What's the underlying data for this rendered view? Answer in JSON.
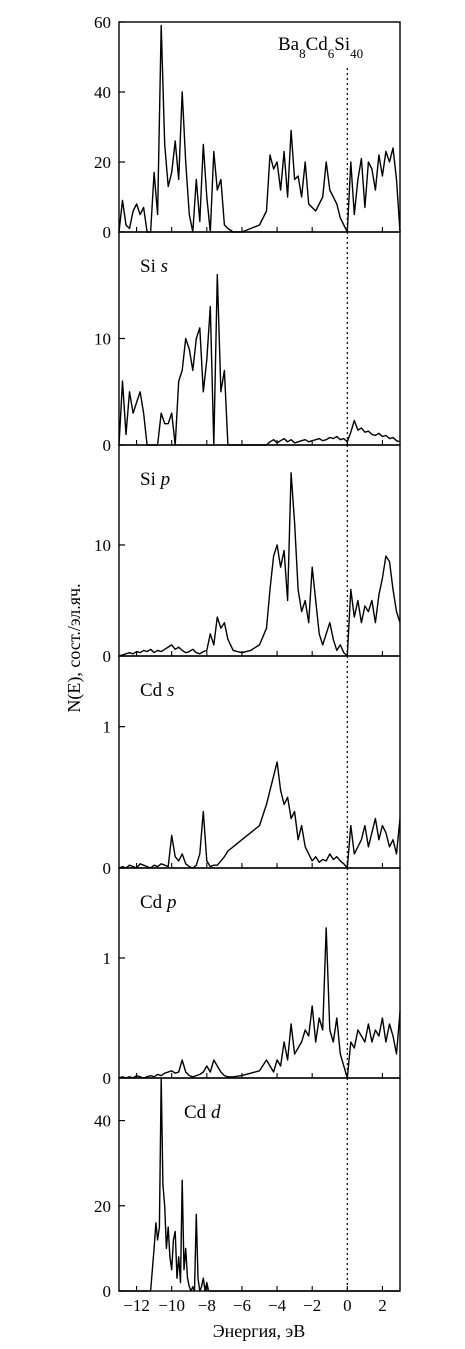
{
  "chart_data": {
    "type": "line",
    "xlabel": "Энергия, эВ",
    "ylabel": "N(E), сост./эл.яч.",
    "xlim": [
      -13,
      3
    ],
    "x_ticks": [
      -12,
      -10,
      -8,
      -6,
      -4,
      -2,
      0,
      2
    ],
    "x_tick_labels": [
      "−12",
      "−10",
      "−8",
      "−6",
      "−4",
      "−2",
      "0",
      "2"
    ],
    "fermi_level": 0,
    "fermi_line_style": "dotted",
    "line_color": "#000000",
    "panels": [
      {
        "label_main": "Ba",
        "label_parts": [
          {
            "t": "Ba",
            "sub": false
          },
          {
            "t": "8",
            "sub": true
          },
          {
            "t": "Cd",
            "sub": false
          },
          {
            "t": "6",
            "sub": true
          },
          {
            "t": "Si",
            "sub": false
          },
          {
            "t": "40",
            "sub": true
          }
        ],
        "label_plain": "Ba8Cd6Si40",
        "ylim": [
          0,
          60
        ],
        "yticks": [
          0,
          20,
          40,
          60
        ],
        "ytick_labels": [
          "0",
          "20",
          "40",
          "60"
        ],
        "x": [
          -13,
          -12.8,
          -12.6,
          -12.4,
          -12.2,
          -12.0,
          -11.8,
          -11.6,
          -11.4,
          -11.2,
          -11.0,
          -10.8,
          -10.6,
          -10.4,
          -10.2,
          -10.0,
          -9.8,
          -9.6,
          -9.4,
          -9.2,
          -9.0,
          -8.8,
          -8.6,
          -8.4,
          -8.2,
          -8.0,
          -7.8,
          -7.6,
          -7.4,
          -7.2,
          -7.0,
          -6.8,
          -6.5,
          -6.0,
          -5.5,
          -5.0,
          -4.6,
          -4.4,
          -4.2,
          -4.0,
          -3.8,
          -3.6,
          -3.4,
          -3.2,
          -3.0,
          -2.8,
          -2.6,
          -2.4,
          -2.2,
          -2.0,
          -1.8,
          -1.6,
          -1.4,
          -1.2,
          -1.0,
          -0.8,
          -0.6,
          -0.4,
          -0.2,
          0.0,
          0.2,
          0.4,
          0.6,
          0.8,
          1.0,
          1.2,
          1.4,
          1.6,
          1.8,
          2.0,
          2.2,
          2.4,
          2.6,
          2.8,
          3.0
        ],
        "y": [
          0,
          9,
          2,
          1,
          6,
          8,
          5,
          7,
          0,
          0,
          17,
          5,
          59,
          25,
          13,
          17,
          26,
          15,
          40,
          20,
          5,
          0,
          15,
          3,
          25,
          10,
          0,
          23,
          12,
          15,
          2,
          1,
          0,
          0,
          1,
          2,
          6,
          22,
          18,
          20,
          12,
          23,
          10,
          29,
          15,
          16,
          10,
          20,
          8,
          7,
          6,
          8,
          10,
          20,
          12,
          10,
          8,
          4,
          2,
          0,
          20,
          5,
          15,
          21,
          7,
          20,
          18,
          12,
          22,
          16,
          23,
          20,
          24,
          15,
          0
        ]
      },
      {
        "label_parts": [
          {
            "t": "Si ",
            "sub": false
          },
          {
            "t": "s",
            "sub": false,
            "italic": true
          }
        ],
        "label_plain": "Si s",
        "ylim": [
          0,
          20
        ],
        "yticks": [
          0,
          10
        ],
        "ytick_labels": [
          "0",
          "10"
        ],
        "x": [
          -13,
          -12.8,
          -12.6,
          -12.4,
          -12.2,
          -12.0,
          -11.8,
          -11.6,
          -11.4,
          -11.2,
          -11.0,
          -10.8,
          -10.6,
          -10.4,
          -10.2,
          -10.0,
          -9.8,
          -9.6,
          -9.4,
          -9.2,
          -9.0,
          -8.8,
          -8.6,
          -8.4,
          -8.2,
          -8.0,
          -7.8,
          -7.6,
          -7.4,
          -7.2,
          -7.0,
          -6.8,
          -6.5,
          -6.0,
          -5.5,
          -5.0,
          -4.6,
          -4.4,
          -4.2,
          -4.0,
          -3.8,
          -3.6,
          -3.4,
          -3.2,
          -3.0,
          -2.8,
          -2.6,
          -2.4,
          -2.2,
          -2.0,
          -1.8,
          -1.6,
          -1.4,
          -1.2,
          -1.0,
          -0.8,
          -0.6,
          -0.4,
          -0.2,
          0.0,
          0.2,
          0.4,
          0.6,
          0.8,
          1.0,
          1.2,
          1.4,
          1.6,
          1.8,
          2.0,
          2.2,
          2.4,
          2.6,
          2.8,
          3.0
        ],
        "y": [
          0,
          6,
          1,
          5,
          3,
          4,
          5,
          3,
          0,
          0,
          0,
          0,
          3,
          2,
          2,
          3,
          0,
          6,
          7,
          10,
          9,
          7,
          10,
          11,
          5,
          8,
          13,
          0,
          16,
          5,
          7,
          0,
          0,
          0,
          0,
          0,
          0,
          0.3,
          0.5,
          0.2,
          0.4,
          0.6,
          0.3,
          0.5,
          0.2,
          0.3,
          0.4,
          0.5,
          0.3,
          0.4,
          0.5,
          0.6,
          0.4,
          0.5,
          0.7,
          0.6,
          0.8,
          0.5,
          0.6,
          0.3,
          1.2,
          2.3,
          1.4,
          1.6,
          1.2,
          1.3,
          1.0,
          0.9,
          1.1,
          0.8,
          0.9,
          0.6,
          0.7,
          0.4,
          0.3
        ]
      },
      {
        "label_parts": [
          {
            "t": "Si ",
            "sub": false
          },
          {
            "t": "p",
            "sub": false,
            "italic": true
          }
        ],
        "label_plain": "Si p",
        "ylim": [
          0,
          19
        ],
        "yticks": [
          0,
          10
        ],
        "ytick_labels": [
          "0",
          "10"
        ],
        "x": [
          -13,
          -12.8,
          -12.6,
          -12.4,
          -12.2,
          -12.0,
          -11.8,
          -11.6,
          -11.4,
          -11.2,
          -11.0,
          -10.8,
          -10.6,
          -10.4,
          -10.2,
          -10.0,
          -9.8,
          -9.6,
          -9.4,
          -9.2,
          -9.0,
          -8.8,
          -8.6,
          -8.4,
          -8.2,
          -8.0,
          -7.8,
          -7.6,
          -7.4,
          -7.2,
          -7.0,
          -6.8,
          -6.5,
          -6.0,
          -5.5,
          -5.0,
          -4.6,
          -4.4,
          -4.2,
          -4.0,
          -3.8,
          -3.6,
          -3.4,
          -3.2,
          -3.0,
          -2.8,
          -2.6,
          -2.4,
          -2.2,
          -2.0,
          -1.8,
          -1.6,
          -1.4,
          -1.2,
          -1.0,
          -0.8,
          -0.6,
          -0.4,
          -0.2,
          0.0,
          0.2,
          0.4,
          0.6,
          0.8,
          1.0,
          1.2,
          1.4,
          1.6,
          1.8,
          2.0,
          2.2,
          2.4,
          2.6,
          2.8,
          3.0
        ],
        "y": [
          0,
          0.1,
          0.2,
          0.3,
          0.2,
          0.4,
          0.3,
          0.5,
          0.4,
          0.6,
          0.3,
          0.5,
          0.4,
          0.6,
          0.8,
          1.0,
          0.6,
          0.8,
          0.5,
          0.3,
          0.4,
          0.6,
          0.3,
          0.2,
          0.4,
          0.5,
          2.0,
          1.0,
          3.5,
          2.5,
          3.0,
          1.5,
          0.5,
          0.3,
          0.5,
          1.0,
          2.5,
          6.0,
          9.0,
          10.0,
          8.0,
          9.5,
          5.0,
          16.5,
          12.0,
          6.0,
          4.0,
          5.0,
          3.0,
          8.0,
          5.0,
          2.0,
          1.0,
          2.0,
          3.0,
          1.5,
          0.5,
          1.0,
          0.3,
          0,
          6.0,
          3.5,
          5.0,
          3.0,
          4.5,
          4.0,
          5.0,
          3.0,
          5.5,
          7.0,
          9.0,
          8.5,
          6.0,
          4.0,
          3.0
        ]
      },
      {
        "label_parts": [
          {
            "t": "Cd ",
            "sub": false
          },
          {
            "t": "s",
            "sub": false,
            "italic": true
          }
        ],
        "label_plain": "Cd s",
        "ylim": [
          0,
          1.5
        ],
        "yticks": [
          0,
          1
        ],
        "ytick_labels": [
          "0",
          "1"
        ],
        "x": [
          -13,
          -12.8,
          -12.6,
          -12.4,
          -12.2,
          -12.0,
          -11.8,
          -11.6,
          -11.4,
          -11.2,
          -11.0,
          -10.8,
          -10.6,
          -10.4,
          -10.2,
          -10.0,
          -9.8,
          -9.6,
          -9.4,
          -9.2,
          -9.0,
          -8.8,
          -8.6,
          -8.4,
          -8.2,
          -8.0,
          -7.8,
          -7.6,
          -7.4,
          -7.2,
          -7.0,
          -6.8,
          -6.5,
          -6.0,
          -5.5,
          -5.0,
          -4.6,
          -4.4,
          -4.2,
          -4.0,
          -3.8,
          -3.6,
          -3.4,
          -3.2,
          -3.0,
          -2.8,
          -2.6,
          -2.4,
          -2.2,
          -2.0,
          -1.8,
          -1.6,
          -1.4,
          -1.2,
          -1.0,
          -0.8,
          -0.6,
          -0.4,
          -0.2,
          0.0,
          0.2,
          0.4,
          0.6,
          0.8,
          1.0,
          1.2,
          1.4,
          1.6,
          1.8,
          2.0,
          2.2,
          2.4,
          2.6,
          2.8,
          3.0
        ],
        "y": [
          0,
          0.01,
          0.0,
          0.02,
          0.01,
          0.0,
          0.03,
          0.02,
          0.01,
          0.0,
          0.02,
          0.01,
          0.03,
          0.02,
          0.01,
          0.23,
          0.08,
          0.05,
          0.1,
          0.03,
          0.01,
          0.0,
          0.02,
          0.1,
          0.4,
          0.05,
          0.01,
          0.02,
          0.02,
          0.05,
          0.08,
          0.12,
          0.15,
          0.2,
          0.25,
          0.3,
          0.45,
          0.55,
          0.65,
          0.75,
          0.55,
          0.45,
          0.5,
          0.35,
          0.4,
          0.2,
          0.3,
          0.15,
          0.1,
          0.05,
          0.08,
          0.04,
          0.06,
          0.05,
          0.1,
          0.06,
          0.08,
          0.05,
          0.03,
          0.0,
          0.3,
          0.1,
          0.15,
          0.2,
          0.3,
          0.15,
          0.25,
          0.35,
          0.2,
          0.3,
          0.25,
          0.15,
          0.2,
          0.1,
          0.35
        ]
      },
      {
        "label_parts": [
          {
            "t": "Cd ",
            "sub": false
          },
          {
            "t": "p",
            "sub": false,
            "italic": true
          }
        ],
        "label_plain": "Cd p",
        "ylim": [
          0,
          1.75
        ],
        "yticks": [
          0,
          1
        ],
        "ytick_labels": [
          "0",
          "1"
        ],
        "x": [
          -13,
          -12.8,
          -12.6,
          -12.4,
          -12.2,
          -12.0,
          -11.8,
          -11.6,
          -11.4,
          -11.2,
          -11.0,
          -10.8,
          -10.6,
          -10.4,
          -10.2,
          -10.0,
          -9.8,
          -9.6,
          -9.4,
          -9.2,
          -9.0,
          -8.8,
          -8.6,
          -8.4,
          -8.2,
          -8.0,
          -7.8,
          -7.6,
          -7.4,
          -7.2,
          -7.0,
          -6.8,
          -6.5,
          -6.0,
          -5.5,
          -5.0,
          -4.6,
          -4.4,
          -4.2,
          -4.0,
          -3.8,
          -3.6,
          -3.4,
          -3.2,
          -3.0,
          -2.8,
          -2.6,
          -2.4,
          -2.2,
          -2.0,
          -1.8,
          -1.6,
          -1.4,
          -1.2,
          -1.0,
          -0.8,
          -0.6,
          -0.4,
          -0.2,
          0.0,
          0.2,
          0.4,
          0.6,
          0.8,
          1.0,
          1.2,
          1.4,
          1.6,
          1.8,
          2.0,
          2.2,
          2.4,
          2.6,
          2.8,
          3.0
        ],
        "y": [
          0,
          0.01,
          0.0,
          0.01,
          0.0,
          0.02,
          0.01,
          0.0,
          0.01,
          0.02,
          0.01,
          0.03,
          0.02,
          0.04,
          0.05,
          0.06,
          0.04,
          0.05,
          0.15,
          0.05,
          0.02,
          0.01,
          0.02,
          0.03,
          0.05,
          0.1,
          0.05,
          0.15,
          0.1,
          0.05,
          0.02,
          0.01,
          0.01,
          0.02,
          0.04,
          0.06,
          0.15,
          0.1,
          0.05,
          0.15,
          0.1,
          0.3,
          0.15,
          0.45,
          0.2,
          0.25,
          0.3,
          0.4,
          0.35,
          0.6,
          0.3,
          0.5,
          0.4,
          1.25,
          0.4,
          0.3,
          0.5,
          0.2,
          0.1,
          0.0,
          0.3,
          0.25,
          0.4,
          0.35,
          0.3,
          0.45,
          0.3,
          0.4,
          0.35,
          0.5,
          0.3,
          0.45,
          0.35,
          0.2,
          0.55
        ]
      },
      {
        "label_parts": [
          {
            "t": "Cd ",
            "sub": false
          },
          {
            "t": "d",
            "sub": false,
            "italic": true
          }
        ],
        "label_plain": "Cd d",
        "ylim": [
          0,
          50
        ],
        "yticks": [
          0,
          20,
          40
        ],
        "ytick_labels": [
          "0",
          "20",
          "40"
        ],
        "x": [
          -13,
          -12.0,
          -11.2,
          -11.0,
          -10.9,
          -10.8,
          -10.7,
          -10.6,
          -10.5,
          -10.4,
          -10.3,
          -10.2,
          -10.1,
          -10.0,
          -9.9,
          -9.8,
          -9.7,
          -9.6,
          -9.5,
          -9.4,
          -9.3,
          -9.2,
          -9.1,
          -9.0,
          -8.9,
          -8.8,
          -8.7,
          -8.6,
          -8.5,
          -8.4,
          -8.3,
          -8.2,
          -8.1,
          -8.0,
          -7.9,
          -7.8,
          -7.7,
          -7.6,
          -7.4,
          -7.0,
          3.0
        ],
        "y": [
          0,
          0,
          0,
          10,
          16,
          12,
          15,
          50,
          25,
          20,
          10,
          15,
          8,
          5,
          12,
          14,
          3,
          8,
          2,
          26,
          5,
          10,
          3,
          1,
          0,
          1,
          0,
          18,
          3,
          0,
          1,
          3,
          0,
          2,
          0,
          0,
          0,
          0,
          0,
          0,
          0
        ]
      }
    ]
  }
}
